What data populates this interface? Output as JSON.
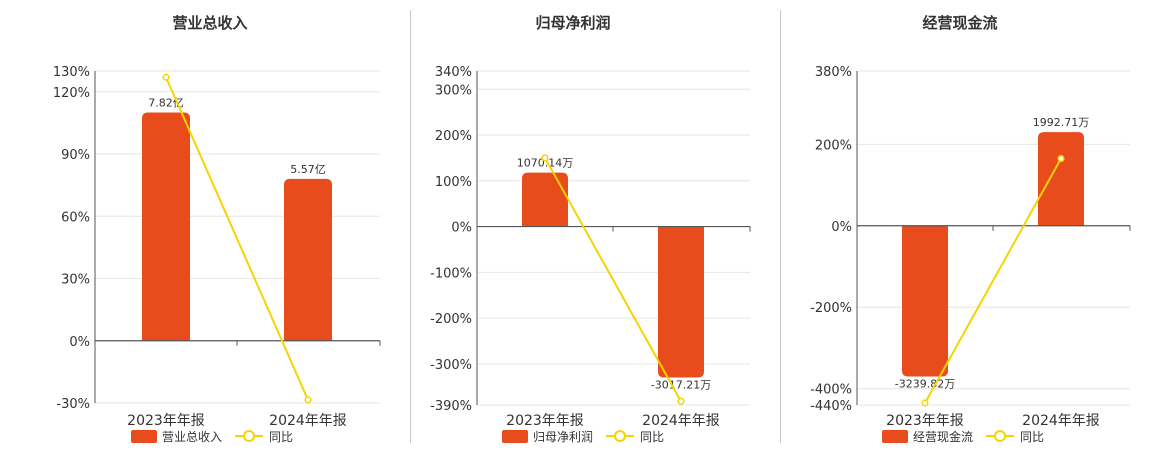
{
  "colors": {
    "bar": "#e84c1c",
    "line": "#f5d400",
    "grid": "#e6e6e6",
    "axis": "#555555"
  },
  "chart_data": [
    {
      "type": "bar",
      "title": "营业总收入",
      "categories": [
        "2023年年报",
        "2024年年报"
      ],
      "bar_labels": [
        "7.82亿",
        "5.57亿"
      ],
      "series": [
        {
          "name": "营业总收入",
          "type": "bar",
          "values": [
            110,
            78
          ]
        },
        {
          "name": "同比",
          "type": "line",
          "values": [
            127,
            -28.5
          ]
        }
      ],
      "ytick_labels": [
        "130%",
        "120%",
        "90%",
        "60%",
        "30%",
        "0%",
        "-30%"
      ],
      "ylim": [
        -30,
        130
      ]
    },
    {
      "type": "bar",
      "title": "归母净利润",
      "categories": [
        "2023年年报",
        "2024年年报"
      ],
      "bar_labels": [
        "1070.14万",
        "-3017.21万"
      ],
      "series": [
        {
          "name": "归母净利润",
          "type": "bar",
          "values": [
            118,
            -330
          ]
        },
        {
          "name": "同比",
          "type": "line",
          "values": [
            150,
            -382
          ]
        }
      ],
      "ytick_labels": [
        "340%",
        "300%",
        "200%",
        "100%",
        "0%",
        "-100%",
        "-200%",
        "-300%",
        "-390%"
      ],
      "ylim": [
        -390,
        340
      ]
    },
    {
      "type": "bar",
      "title": "经营现金流",
      "categories": [
        "2023年年报",
        "2024年年报"
      ],
      "bar_labels": [
        "-3239.82万",
        "1992.71万"
      ],
      "series": [
        {
          "name": "经营现金流",
          "type": "bar",
          "values": [
            -370,
            230
          ]
        },
        {
          "name": "同比",
          "type": "line",
          "values": [
            -435,
            165
          ]
        }
      ],
      "ytick_labels": [
        "380%",
        "200%",
        "0%",
        "-200%",
        "-400%",
        "-440%"
      ],
      "ylim": [
        -440,
        380
      ]
    }
  ]
}
